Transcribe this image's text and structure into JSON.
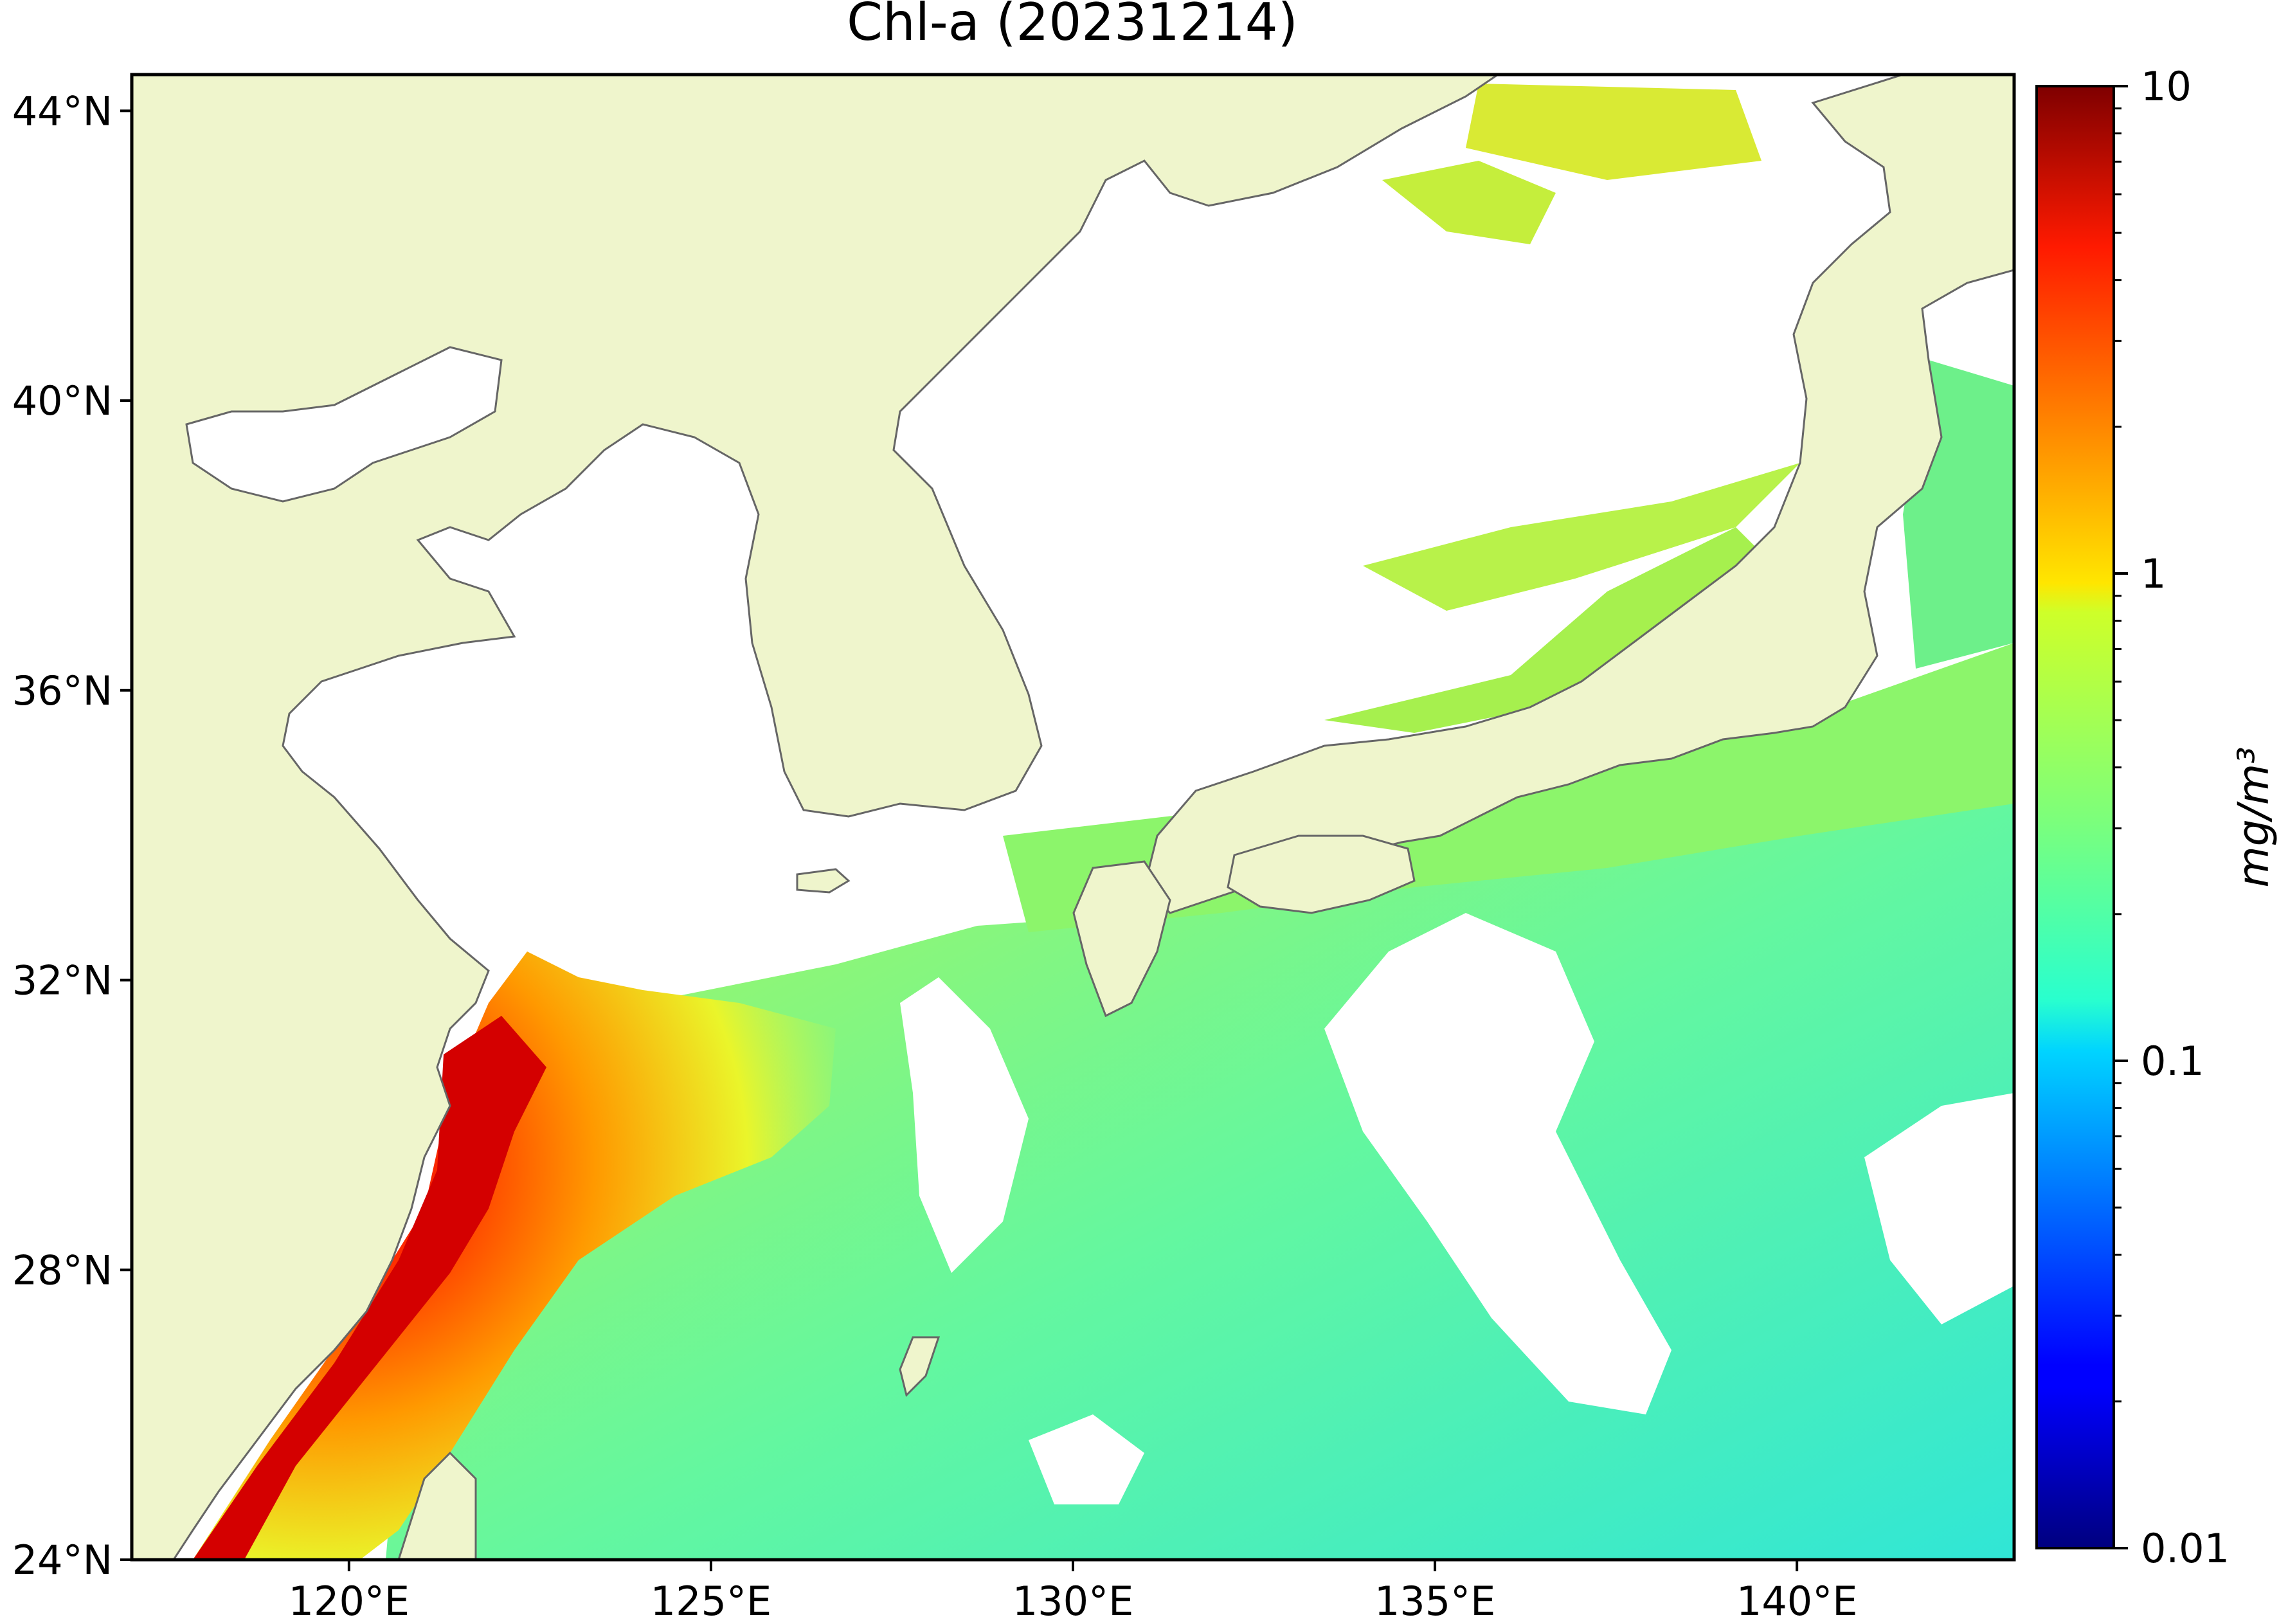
{
  "title": "Chl-a (20231214)",
  "map": {
    "lat_axis": {
      "range": [
        24,
        44.5
      ],
      "ticks": [
        {
          "value": 44,
          "label": "44°N"
        },
        {
          "value": 40,
          "label": "40°N"
        },
        {
          "value": 36,
          "label": "36°N"
        },
        {
          "value": 32,
          "label": "32°N"
        },
        {
          "value": 28,
          "label": "28°N"
        },
        {
          "value": 24,
          "label": "24°N"
        }
      ]
    },
    "lon_axis": {
      "range": [
        117,
        143
      ],
      "ticks": [
        {
          "value": 120,
          "label": "120°E"
        },
        {
          "value": 125,
          "label": "125°E"
        },
        {
          "value": 130,
          "label": "130°E"
        },
        {
          "value": 135,
          "label": "135°E"
        },
        {
          "value": 140,
          "label": "140°E"
        }
      ]
    },
    "colors": {
      "land": "#eff5cc",
      "coastline": "#666666",
      "no_data": "#ffffff"
    }
  },
  "colorbar": {
    "label": "mg/m³",
    "scale": "log",
    "range": [
      0.01,
      10
    ],
    "ticks": [
      {
        "value": 10,
        "label": "10"
      },
      {
        "value": 1,
        "label": "1"
      },
      {
        "value": 0.1,
        "label": "0.1"
      },
      {
        "value": 0.01,
        "label": "0.01"
      }
    ],
    "colormap": "jet"
  }
}
